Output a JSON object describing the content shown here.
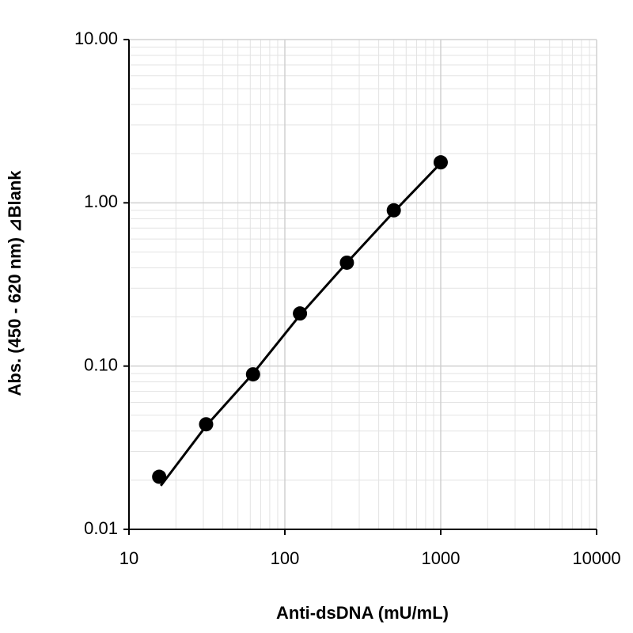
{
  "chart_data": {
    "type": "scatter",
    "x_label": "Anti-dsDNA (mU/mL)",
    "y_label": "Abs. (450 - 620 nm) ⊿Blank",
    "x_log": true,
    "y_log": true,
    "grid": true,
    "minor_grid": true,
    "xlim": [
      10,
      10000
    ],
    "xticks": [
      10,
      100,
      1000,
      10000
    ],
    "ylim": [
      0.01,
      10
    ],
    "yticks": [
      {
        "value": 0.01,
        "label": "0.01"
      },
      {
        "value": 0.1,
        "label": "0.10"
      },
      {
        "value": 1,
        "label": "1.00"
      },
      {
        "value": 10,
        "label": "10.00"
      }
    ],
    "series": [
      {
        "type": "line",
        "color": "#000000",
        "x": [
          16,
          31.25,
          62.5,
          125,
          250,
          500,
          1000
        ],
        "values": [
          0.0185,
          0.043,
          0.09,
          0.205,
          0.43,
          0.88,
          1.75
        ]
      },
      {
        "type": "scatter",
        "color": "#000000",
        "x": [
          15.625,
          31.25,
          62.5,
          125,
          250,
          500,
          1000
        ],
        "values": [
          0.021,
          0.044,
          0.089,
          0.21,
          0.43,
          0.9,
          1.77
        ]
      }
    ]
  }
}
